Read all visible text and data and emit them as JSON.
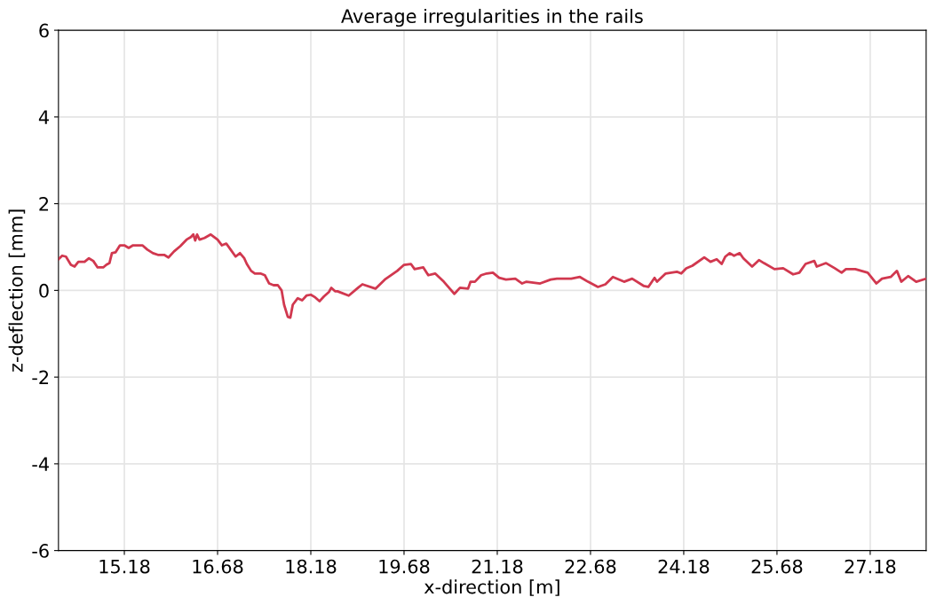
{
  "chart_data": {
    "type": "line",
    "title": "Average irregularities in the rails",
    "xlabel": "x-direction [m]",
    "ylabel": "z-deflection [mm]",
    "xlim": [
      14.12,
      28.08
    ],
    "ylim": [
      -6,
      6
    ],
    "xticks": [
      15.18,
      16.68,
      18.18,
      19.68,
      21.18,
      22.68,
      24.18,
      25.68,
      27.18
    ],
    "yticks": [
      -6,
      -4,
      -2,
      0,
      2,
      4,
      6
    ],
    "grid": true,
    "marker": "none",
    "line_style": "solid",
    "series": [
      {
        "color": "#d1384f",
        "x": [
          14.12,
          14.18,
          14.24,
          14.32,
          14.38,
          14.44,
          14.54,
          14.61,
          14.68,
          14.75,
          14.84,
          14.89,
          14.94,
          14.98,
          15.04,
          15.11,
          15.18,
          15.25,
          15.32,
          15.47,
          15.55,
          15.64,
          15.72,
          15.82,
          15.89,
          15.98,
          16.08,
          16.18,
          16.25,
          16.29,
          16.32,
          16.35,
          16.39,
          16.47,
          16.57,
          16.68,
          16.75,
          16.82,
          16.89,
          16.97,
          17.04,
          17.11,
          17.15,
          17.22,
          17.28,
          17.37,
          17.44,
          17.51,
          17.58,
          17.65,
          17.71,
          17.75,
          17.81,
          17.85,
          17.89,
          17.97,
          18.04,
          18.11,
          18.18,
          18.25,
          18.32,
          18.39,
          18.47,
          18.51,
          18.57,
          18.61,
          18.79,
          18.94,
          19.01,
          19.22,
          19.37,
          19.57,
          19.68,
          19.79,
          19.85,
          19.99,
          20.07,
          20.18,
          20.32,
          20.49,
          20.58,
          20.71,
          20.75,
          20.82,
          20.92,
          21.01,
          21.11,
          21.21,
          21.32,
          21.47,
          21.58,
          21.65,
          21.87,
          22.04,
          22.14,
          22.37,
          22.51,
          22.64,
          22.8,
          22.92,
          23.04,
          23.22,
          23.35,
          23.54,
          23.61,
          23.71,
          23.75,
          23.89,
          24.07,
          24.14,
          24.22,
          24.32,
          24.51,
          24.61,
          24.71,
          24.79,
          24.85,
          24.92,
          24.99,
          25.08,
          25.14,
          25.28,
          25.39,
          25.47,
          25.64,
          25.78,
          25.94,
          26.04,
          26.14,
          26.28,
          26.32,
          26.47,
          26.61,
          26.72,
          26.79,
          26.94,
          27.14,
          27.28,
          27.37,
          27.51,
          27.61,
          27.68,
          27.79,
          27.92,
          28.08
        ],
        "values": [
          0.72,
          0.8,
          0.78,
          0.59,
          0.55,
          0.66,
          0.66,
          0.74,
          0.68,
          0.53,
          0.53,
          0.59,
          0.63,
          0.86,
          0.88,
          1.04,
          1.04,
          0.98,
          1.04,
          1.04,
          0.94,
          0.86,
          0.82,
          0.82,
          0.76,
          0.9,
          1.02,
          1.17,
          1.23,
          1.29,
          1.15,
          1.29,
          1.17,
          1.21,
          1.29,
          1.17,
          1.04,
          1.08,
          0.94,
          0.78,
          0.86,
          0.74,
          0.61,
          0.45,
          0.39,
          0.39,
          0.35,
          0.16,
          0.12,
          0.12,
          0.0,
          -0.33,
          -0.61,
          -0.63,
          -0.33,
          -0.18,
          -0.23,
          -0.12,
          -0.1,
          -0.16,
          -0.25,
          -0.14,
          -0.04,
          0.06,
          -0.02,
          -0.02,
          -0.12,
          0.06,
          0.14,
          0.04,
          0.25,
          0.45,
          0.59,
          0.61,
          0.49,
          0.53,
          0.35,
          0.39,
          0.2,
          -0.08,
          0.06,
          0.04,
          0.2,
          0.2,
          0.35,
          0.39,
          0.41,
          0.29,
          0.25,
          0.27,
          0.16,
          0.2,
          0.16,
          0.25,
          0.27,
          0.27,
          0.31,
          0.2,
          0.08,
          0.14,
          0.31,
          0.2,
          0.27,
          0.1,
          0.08,
          0.29,
          0.2,
          0.39,
          0.43,
          0.39,
          0.51,
          0.57,
          0.76,
          0.66,
          0.72,
          0.61,
          0.78,
          0.86,
          0.8,
          0.86,
          0.74,
          0.55,
          0.7,
          0.63,
          0.49,
          0.51,
          0.37,
          0.41,
          0.61,
          0.68,
          0.55,
          0.63,
          0.51,
          0.41,
          0.49,
          0.49,
          0.41,
          0.16,
          0.27,
          0.31,
          0.45,
          0.2,
          0.33,
          0.2,
          0.27
        ]
      }
    ]
  }
}
